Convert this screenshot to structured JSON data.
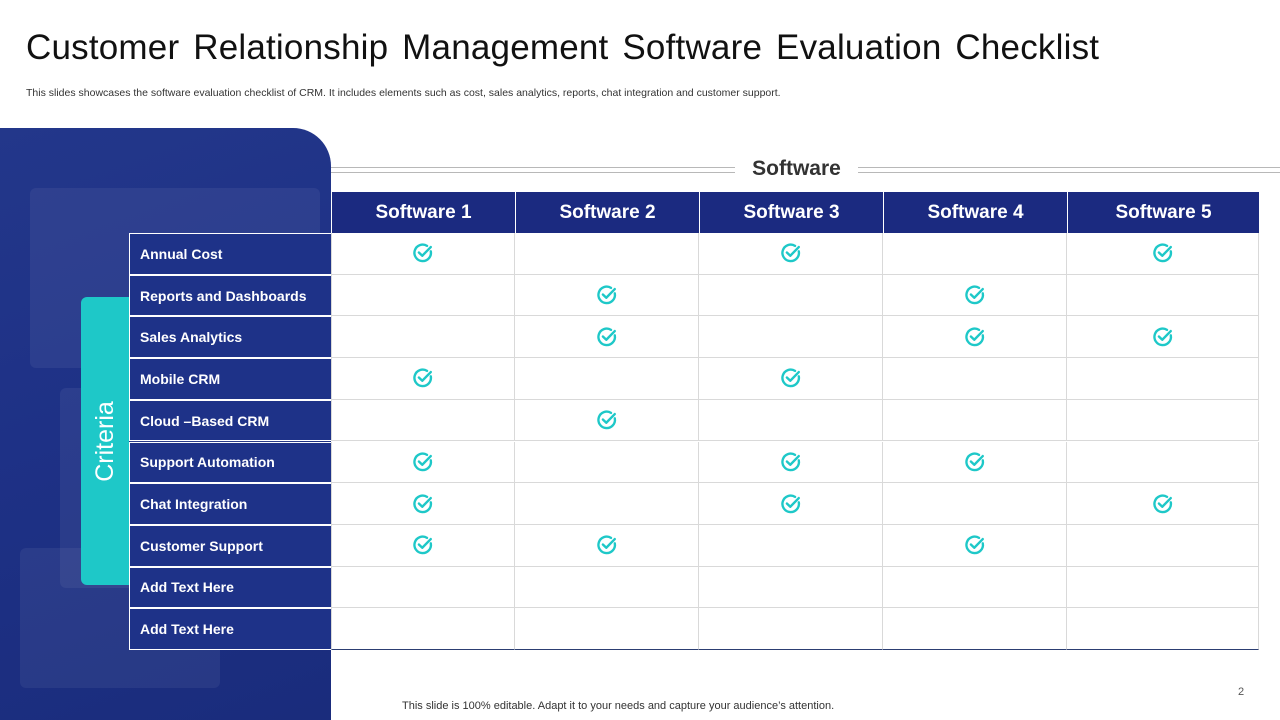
{
  "slide": {
    "title": "Customer Relationship Management Software Evaluation Checklist",
    "subtitle": "This slides showcases the software evaluation checklist of CRM. It includes elements such as cost, sales analytics, reports, chat integration and customer support.",
    "footer": "This slide is 100% editable. Adapt it to your needs and capture your audience’s attention.",
    "page_number": "2"
  },
  "table": {
    "group_label": "Software",
    "axis_label": "Criteria",
    "columns": [
      "Software 1",
      "Software 2",
      "Software 3",
      "Software 4",
      "Software 5"
    ],
    "rows": [
      {
        "label": "Annual  Cost",
        "checks": [
          true,
          false,
          true,
          false,
          true
        ]
      },
      {
        "label": "Reports and Dashboards",
        "checks": [
          false,
          true,
          false,
          true,
          false
        ]
      },
      {
        "label": "Sales Analytics",
        "checks": [
          false,
          true,
          false,
          true,
          true
        ]
      },
      {
        "label": "Mobile CRM",
        "checks": [
          true,
          false,
          true,
          false,
          false
        ]
      },
      {
        "label": "Cloud –Based CRM",
        "checks": [
          false,
          true,
          false,
          false,
          false
        ]
      },
      {
        "label": "Support Automation",
        "checks": [
          true,
          false,
          true,
          true,
          false
        ]
      },
      {
        "label": "Chat Integration",
        "checks": [
          true,
          false,
          true,
          false,
          true
        ]
      },
      {
        "label": "Customer Support",
        "checks": [
          true,
          true,
          false,
          true,
          false
        ]
      },
      {
        "label": "Add  Text Here",
        "checks": [
          false,
          false,
          false,
          false,
          false
        ]
      },
      {
        "label": "Add  Text Here",
        "checks": [
          false,
          false,
          false,
          false,
          false
        ]
      }
    ]
  },
  "colors": {
    "header_bg": "#1b2a80",
    "row_label_bg": "#1e3288",
    "accent": "#1ec8c8",
    "check": "#1ec8c8"
  },
  "icons": {
    "check": "check-circle-icon"
  }
}
